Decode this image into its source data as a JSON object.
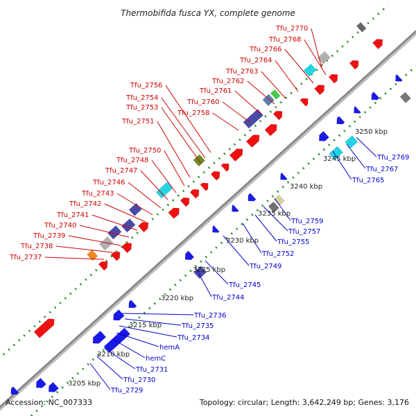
{
  "title": "Thermobifida fusca YX, complete genome",
  "footer": {
    "accession": "Accession: NC_007333",
    "topology": "Topology: circular; Length: 3,642,249 bp; Genes: 3,176"
  },
  "colors": {
    "upper_label": "#cc0000",
    "lower_label": "#0000cc",
    "red_gene": "#ee1111",
    "blue_gene": "#1a1ae6",
    "dark_gene": "#4a4aa8",
    "cyan_gene": "#22d4e0",
    "olive_gene": "#6b8e23",
    "grey_gene": "#b0b0b0",
    "tan_gene": "#d8d0a0",
    "backbone": "#999999",
    "dots": "#2a8a2a"
  },
  "scale_labels": [
    "3205 kbp",
    "3210 kbp",
    "3215 kbp",
    "3220 kbp",
    "3225 kbp",
    "3230 kbp",
    "3235 kbp",
    "3240 kbp",
    "3245 kbp",
    "3250 kbp"
  ],
  "upper_genes": [
    "Tfu_2770",
    "Tfu_2768",
    "Tfu_2766",
    "Tfu_2764",
    "Tfu_2763",
    "Tfu_2762",
    "Tfu_2761",
    "Tfu_2760",
    "Tfu_2758",
    "Tfu_2756",
    "Tfu_2754",
    "Tfu_2753",
    "Tfu_2751",
    "Tfu_2750",
    "Tfu_2748",
    "Tfu_2747",
    "Tfu_2746",
    "Tfu_2743",
    "Tfu_2742",
    "Tfu_2741",
    "Tfu_2740",
    "Tfu_2739",
    "Tfu_2738",
    "Tfu_2737"
  ],
  "lower_genes": [
    "Tfu_2769",
    "Tfu_2767",
    "Tfu_2765",
    "Tfu_2759",
    "Tfu_2757",
    "Tfu_2755",
    "Tfu_2752",
    "Tfu_2749",
    "Tfu_2745",
    "Tfu_2744",
    "Tfu_2736",
    "Tfu_2735",
    "Tfu_2734",
    "hemA",
    "hemC",
    "Tfu_2731",
    "Tfu_2730",
    "Tfu_2729"
  ]
}
